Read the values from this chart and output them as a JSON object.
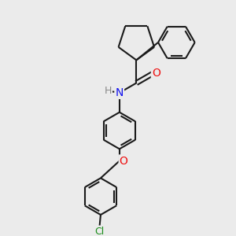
{
  "background_color": "#ebebeb",
  "line_color": "#1a1a1a",
  "bond_width": 1.5,
  "atom_colors": {
    "N": "#1010ee",
    "O": "#ee1010",
    "Cl": "#1a8c1a",
    "H": "#888888"
  }
}
